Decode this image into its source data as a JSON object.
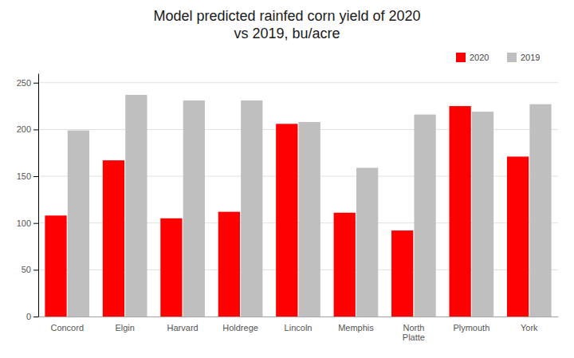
{
  "chart_data": {
    "type": "bar",
    "title": "Model predicted rainfed corn yield of 2020\nvs 2019, bu/acre",
    "categories": [
      "Concord",
      "Elgin",
      "Harvard",
      "Holdrege",
      "Lincoln",
      "Memphis",
      "North\nPlatte",
      "Plymouth",
      "York"
    ],
    "series": [
      {
        "name": "2020",
        "color": "#FF0000",
        "values": [
          108,
          167,
          105,
          112,
          206,
          111,
          92,
          225,
          171
        ]
      },
      {
        "name": "2019",
        "color": "#BFBFBF",
        "values": [
          199,
          237,
          231,
          231,
          208,
          159,
          216,
          219,
          227
        ]
      }
    ],
    "ylim": [
      0,
      260
    ],
    "yticks": [
      0,
      50,
      100,
      150,
      200,
      250
    ],
    "grid": true,
    "legend": "upper right"
  }
}
